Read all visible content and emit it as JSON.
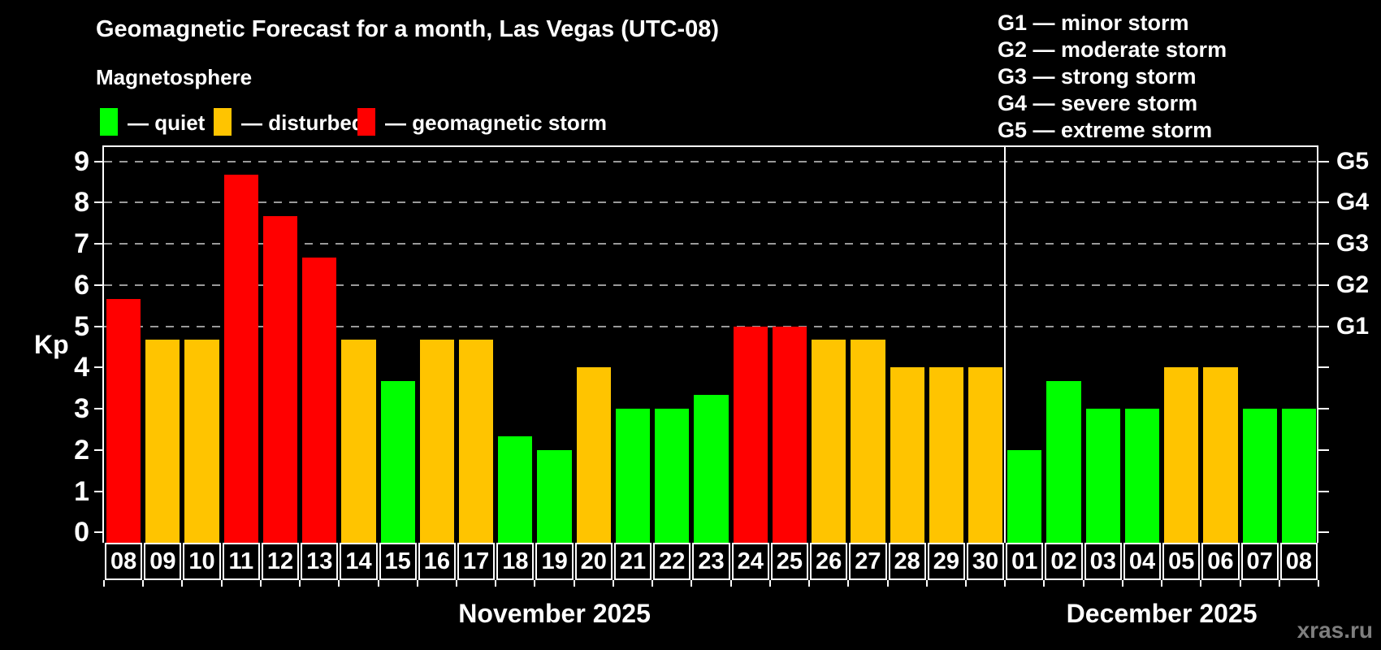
{
  "title": "Geomagnetic Forecast for a month, Las Vegas (UTC-08)",
  "subtitle": "Magnetosphere",
  "watermark": "xras.ru",
  "colors": {
    "quiet": "#00ff00",
    "disturbed": "#ffc400",
    "storm": "#ff0000",
    "grid": "#9a9a9a",
    "axis": "#ffffff",
    "background": "#000000"
  },
  "legend": {
    "items": [
      {
        "key": "quiet",
        "label": "— quiet"
      },
      {
        "key": "disturbed",
        "label": "— disturbed"
      },
      {
        "key": "storm",
        "label": "— geomagnetic storm"
      }
    ]
  },
  "storm_scale_legend": {
    "items": [
      "G1 — minor storm",
      "G2 — moderate storm",
      "G3 — strong storm",
      "G4 — severe storm",
      "G5 — extreme storm"
    ]
  },
  "axis": {
    "kp_label": "Kp",
    "yticks": [
      0,
      1,
      2,
      3,
      4,
      5,
      6,
      7,
      8,
      9
    ],
    "g_levels": [
      {
        "label": "G1",
        "kp": 5
      },
      {
        "label": "G2",
        "kp": 6
      },
      {
        "label": "G3",
        "kp": 7
      },
      {
        "label": "G4",
        "kp": 8
      },
      {
        "label": "G5",
        "kp": 9
      }
    ]
  },
  "chart_data": {
    "type": "bar",
    "title": "Geomagnetic Forecast for a month, Las Vegas (UTC-08)",
    "xlabel": "",
    "ylabel": "Kp",
    "ylim": [
      0,
      9.33
    ],
    "grid": "dashed horizontal lines at Kp 5,6,7,8,9 (G1–G5)",
    "legend_position": "top-left",
    "months": [
      {
        "label": "November 2025",
        "days": [
          {
            "date": "08",
            "kp": 5.67,
            "condition": "storm"
          },
          {
            "date": "09",
            "kp": 4.67,
            "condition": "disturbed"
          },
          {
            "date": "10",
            "kp": 4.67,
            "condition": "disturbed"
          },
          {
            "date": "11",
            "kp": 8.67,
            "condition": "storm"
          },
          {
            "date": "12",
            "kp": 7.67,
            "condition": "storm"
          },
          {
            "date": "13",
            "kp": 6.67,
            "condition": "storm"
          },
          {
            "date": "14",
            "kp": 4.67,
            "condition": "disturbed"
          },
          {
            "date": "15",
            "kp": 3.67,
            "condition": "quiet"
          },
          {
            "date": "16",
            "kp": 4.67,
            "condition": "disturbed"
          },
          {
            "date": "17",
            "kp": 4.67,
            "condition": "disturbed"
          },
          {
            "date": "18",
            "kp": 2.33,
            "condition": "quiet"
          },
          {
            "date": "19",
            "kp": 2.0,
            "condition": "quiet"
          },
          {
            "date": "20",
            "kp": 4.0,
            "condition": "disturbed"
          },
          {
            "date": "21",
            "kp": 3.0,
            "condition": "quiet"
          },
          {
            "date": "22",
            "kp": 3.0,
            "condition": "quiet"
          },
          {
            "date": "23",
            "kp": 3.33,
            "condition": "quiet"
          },
          {
            "date": "24",
            "kp": 5.0,
            "condition": "storm"
          },
          {
            "date": "25",
            "kp": 5.0,
            "condition": "storm"
          },
          {
            "date": "26",
            "kp": 4.67,
            "condition": "disturbed"
          },
          {
            "date": "27",
            "kp": 4.67,
            "condition": "disturbed"
          },
          {
            "date": "28",
            "kp": 4.0,
            "condition": "disturbed"
          },
          {
            "date": "29",
            "kp": 4.0,
            "condition": "disturbed"
          },
          {
            "date": "30",
            "kp": 4.0,
            "condition": "disturbed"
          }
        ]
      },
      {
        "label": "December 2025",
        "days": [
          {
            "date": "01",
            "kp": 2.0,
            "condition": "quiet"
          },
          {
            "date": "02",
            "kp": 3.67,
            "condition": "quiet"
          },
          {
            "date": "03",
            "kp": 3.0,
            "condition": "quiet"
          },
          {
            "date": "04",
            "kp": 3.0,
            "condition": "quiet"
          },
          {
            "date": "05",
            "kp": 4.0,
            "condition": "disturbed"
          },
          {
            "date": "06",
            "kp": 4.0,
            "condition": "disturbed"
          },
          {
            "date": "07",
            "kp": 3.0,
            "condition": "quiet"
          },
          {
            "date": "08",
            "kp": 3.0,
            "condition": "quiet"
          }
        ]
      }
    ]
  }
}
